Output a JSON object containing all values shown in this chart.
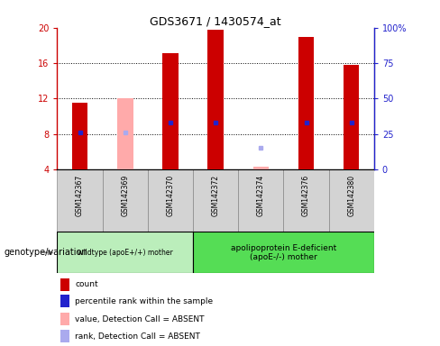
{
  "title": "GDS3671 / 1430574_at",
  "samples": [
    "GSM142367",
    "GSM142369",
    "GSM142370",
    "GSM142372",
    "GSM142374",
    "GSM142376",
    "GSM142380"
  ],
  "bar_values": [
    11.5,
    12.0,
    17.1,
    19.8,
    4.35,
    19.0,
    15.8
  ],
  "bar_colors": [
    "#cc0000",
    "#ffaaaa",
    "#cc0000",
    "#cc0000",
    "#ffaaaa",
    "#cc0000",
    "#cc0000"
  ],
  "percentile_values": [
    8.2,
    8.2,
    9.3,
    9.3,
    6.5,
    9.3,
    9.3
  ],
  "percentile_colors": [
    "#2222cc",
    "#aaaaee",
    "#2222cc",
    "#2222cc",
    "#aaaaee",
    "#2222cc",
    "#2222cc"
  ],
  "bar_bottom": 4.0,
  "ylim_left": [
    4,
    20
  ],
  "ylim_right": [
    0,
    100
  ],
  "yticks_left": [
    4,
    8,
    12,
    16,
    20
  ],
  "yticks_right": [
    0,
    25,
    50,
    75,
    100
  ],
  "ytick_labels_right": [
    "0",
    "25",
    "50",
    "75",
    "100%"
  ],
  "group1_label": "wildtype (apoE+/+) mother",
  "group2_label": "apolipoprotein E-deficient\n(apoE-/-) mother",
  "group1_color": "#bbeebb",
  "group2_color": "#55dd55",
  "genotype_label": "genotype/variation",
  "legend_items": [
    {
      "label": "count",
      "color": "#cc0000"
    },
    {
      "label": "percentile rank within the sample",
      "color": "#2222cc"
    },
    {
      "label": "value, Detection Call = ABSENT",
      "color": "#ffaaaa"
    },
    {
      "label": "rank, Detection Call = ABSENT",
      "color": "#aaaaee"
    }
  ],
  "axis_color_left": "#cc0000",
  "axis_color_right": "#2222cc",
  "bar_width": 0.35
}
